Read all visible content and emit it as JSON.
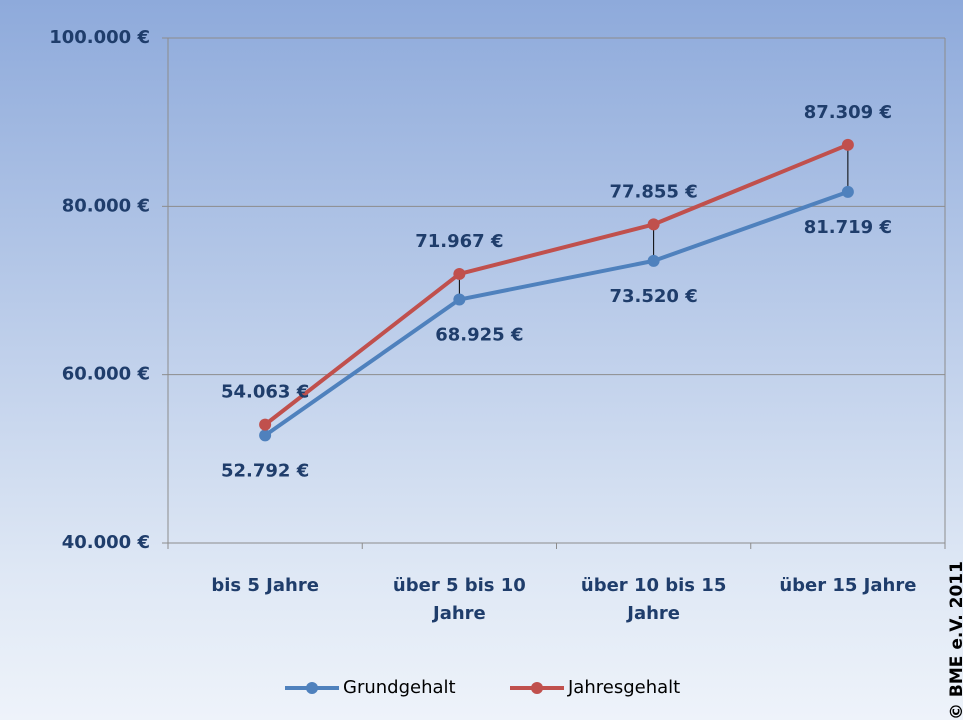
{
  "chart_data": {
    "type": "line",
    "categories": [
      "bis 5 Jahre",
      "über 5 bis 10 Jahre",
      "über 10 bis 15 Jahre",
      "über 15 Jahre"
    ],
    "series": [
      {
        "name": "Grundgehalt",
        "color": "#4f81bd",
        "values": [
          52792,
          68925,
          73520,
          81719
        ],
        "value_labels": [
          "52.792 €",
          "68.925 €",
          "73.520 €",
          "81.719 €"
        ]
      },
      {
        "name": "Jahresgehalt",
        "color": "#c0504d",
        "values": [
          54063,
          71967,
          77855,
          87309
        ],
        "value_labels": [
          "54.063 €",
          "71.967 €",
          "77.855 €",
          "87.309 €"
        ]
      }
    ],
    "ylim": [
      40000,
      100000
    ],
    "yticks": [
      {
        "value": 40000,
        "label": "40.000 €"
      },
      {
        "value": 60000,
        "label": "60.000 €"
      },
      {
        "value": 80000,
        "label": "80.000 €"
      },
      {
        "value": 100000,
        "label": "100.000 €"
      }
    ],
    "grid": true,
    "legend": "bottom",
    "annotation": "© BME e.V. 2011"
  }
}
